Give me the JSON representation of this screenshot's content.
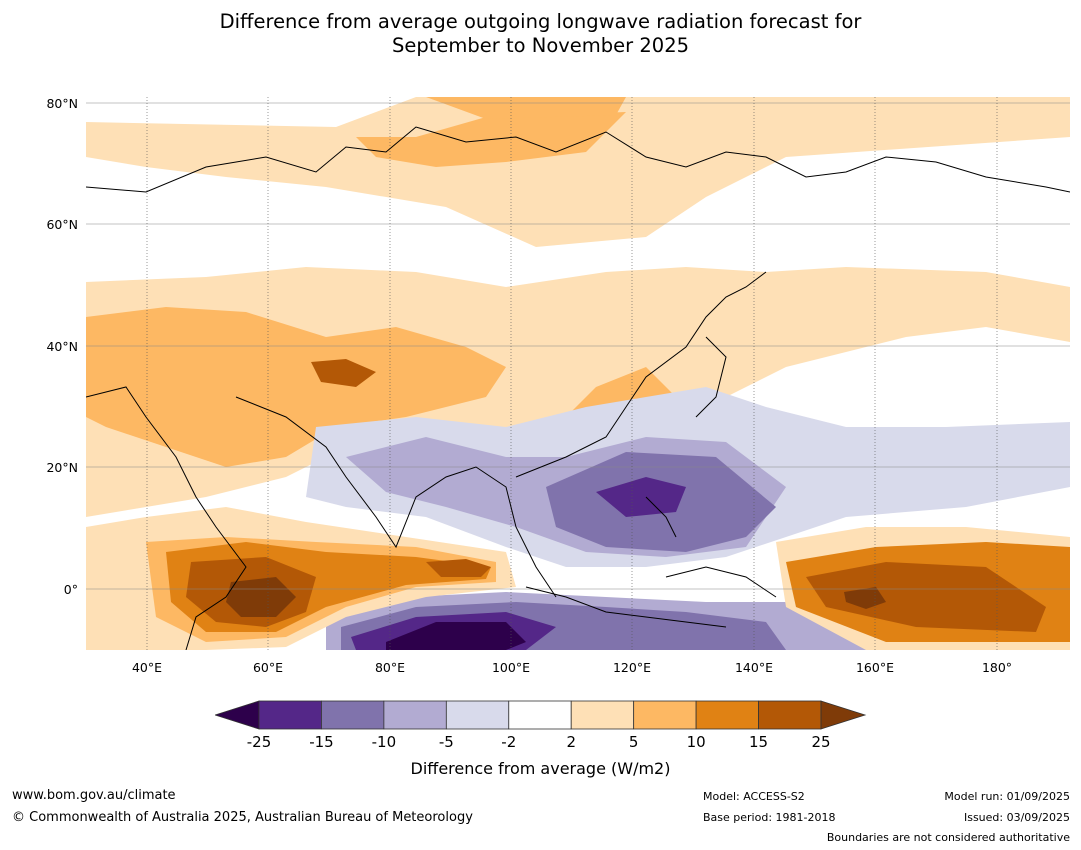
{
  "title": {
    "line1": "Difference from average outgoing longwave radiation forecast for",
    "line2": "September to November 2025"
  },
  "map": {
    "lon_range": [
      30,
      192
    ],
    "lat_range": [
      -10,
      81
    ],
    "lat_labels": [
      "80°N",
      "60°N",
      "40°N",
      "20°N",
      "0°"
    ],
    "lon_labels": [
      "40°E",
      "60°E",
      "80°E",
      "100°E",
      "120°E",
      "140°E",
      "160°E",
      "180°"
    ]
  },
  "colorbar": {
    "ticks": [
      "-25",
      "-15",
      "-10",
      "-5",
      "-2",
      "2",
      "5",
      "10",
      "15",
      "25"
    ],
    "colors": [
      "#2d004b",
      "#542788",
      "#8073ac",
      "#b2abd2",
      "#d8daeb",
      "#ffffff",
      "#fee0b6",
      "#fdb863",
      "#e08214",
      "#b35806",
      "#7f3b08"
    ],
    "label": "Difference from average (W/m2)"
  },
  "footer": {
    "website": "www.bom.gov.au/climate",
    "copyright": "© Commonwealth of Australia 2025, Australian Bureau of Meteorology",
    "model": "Model: ACCESS-S2",
    "base_period": "Base period: 1981-2018",
    "model_run": "Model run: 01/09/2025",
    "issued": "Issued: 03/09/2025",
    "disclaimer": "Boundaries are not considered authoritative"
  }
}
